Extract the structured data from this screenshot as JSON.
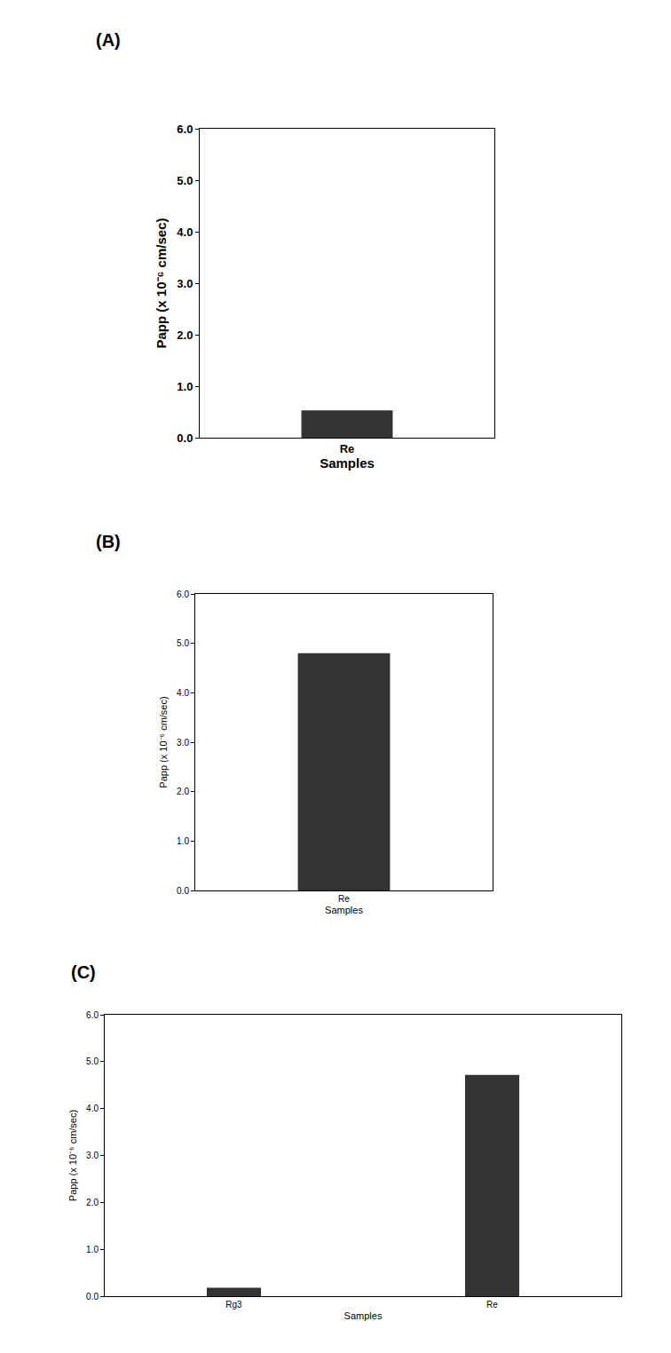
{
  "chart_data": [
    {
      "type": "bar",
      "title": "(A)",
      "categories": [
        "Re"
      ],
      "values": [
        0.53
      ],
      "color": "#333333",
      "xlabel": "Samples",
      "ylabel": "Papp (x 10⁻⁶ cm/sec)",
      "ylim": [
        0,
        6
      ],
      "yticks": [
        {
          "value": 0,
          "label": "0.0"
        },
        {
          "value": 1,
          "label": "1.0"
        },
        {
          "value": 2,
          "label": "2.0"
        },
        {
          "value": 3,
          "label": "3.0"
        },
        {
          "value": 4,
          "label": "4.0"
        },
        {
          "value": 5,
          "label": "5.0"
        },
        {
          "value": 6,
          "label": "6.0"
        }
      ],
      "grid": false
    },
    {
      "type": "bar",
      "title": "(B)",
      "categories": [
        "Re"
      ],
      "values": [
        4.8
      ],
      "color": "#333333",
      "xlabel": "Samples",
      "ylabel": "Papp (x 10⁻⁶ cm/sec)",
      "ylim": [
        0,
        6
      ],
      "yticks": [
        {
          "value": 0,
          "label": "0.0"
        },
        {
          "value": 1,
          "label": "1.0"
        },
        {
          "value": 2,
          "label": "2.0"
        },
        {
          "value": 3,
          "label": "3.0"
        },
        {
          "value": 4,
          "label": "4.0"
        },
        {
          "value": 5,
          "label": "5.0"
        },
        {
          "value": 6,
          "label": "6.0"
        }
      ],
      "grid": false
    },
    {
      "type": "bar",
      "title": "(C)",
      "categories": [
        "Rg3",
        "Re"
      ],
      "values": [
        0.18,
        4.72
      ],
      "color": "#333333",
      "xlabel": "Samples",
      "ylabel": "Papp (x 10⁻⁶ cm/sec)",
      "ylim": [
        0,
        6
      ],
      "yticks": [
        {
          "value": 0,
          "label": "0.0"
        },
        {
          "value": 1,
          "label": "1.0"
        },
        {
          "value": 2,
          "label": "2.0"
        },
        {
          "value": 3,
          "label": "3.0"
        },
        {
          "value": 4,
          "label": "4.0"
        },
        {
          "value": 5,
          "label": "5.0"
        },
        {
          "value": 6,
          "label": "6.0"
        }
      ],
      "grid": false
    }
  ]
}
